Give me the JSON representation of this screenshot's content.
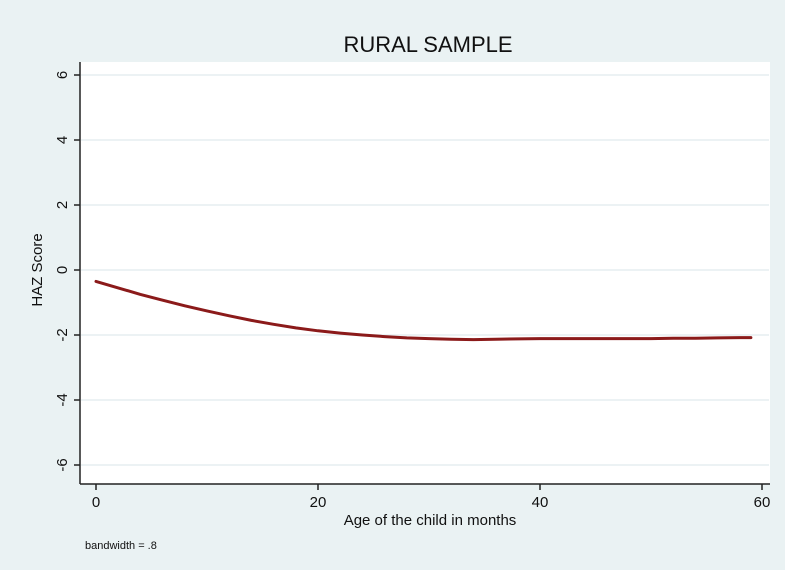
{
  "chart_data": {
    "type": "line",
    "title": "RURAL SAMPLE",
    "xlabel": "Age of the child in months",
    "ylabel": "HAZ Score",
    "xlim": [
      0,
      60
    ],
    "ylim": [
      -6,
      6
    ],
    "xticks": [
      0,
      20,
      40,
      60
    ],
    "yticks": [
      6,
      4,
      2,
      0,
      -2,
      -4,
      -6
    ],
    "ytick_labels": [
      "6",
      "4",
      "2",
      "0",
      "-2",
      "-4",
      "-6"
    ],
    "grid": true,
    "note": "bandwidth = .8",
    "series": [
      {
        "color": "#8b1a1a",
        "x": [
          0,
          2,
          4,
          6,
          8,
          10,
          12,
          14,
          16,
          18,
          20,
          22,
          24,
          26,
          28,
          30,
          32,
          34,
          36,
          38,
          40,
          42,
          44,
          46,
          48,
          50,
          52,
          54,
          56,
          58,
          59
        ],
        "y": [
          -0.35,
          -0.55,
          -0.75,
          -0.93,
          -1.1,
          -1.26,
          -1.41,
          -1.55,
          -1.67,
          -1.78,
          -1.87,
          -1.94,
          -2.0,
          -2.05,
          -2.09,
          -2.11,
          -2.13,
          -2.14,
          -2.13,
          -2.12,
          -2.11,
          -2.11,
          -2.11,
          -2.11,
          -2.11,
          -2.11,
          -2.1,
          -2.1,
          -2.09,
          -2.08,
          -2.08
        ]
      }
    ]
  }
}
